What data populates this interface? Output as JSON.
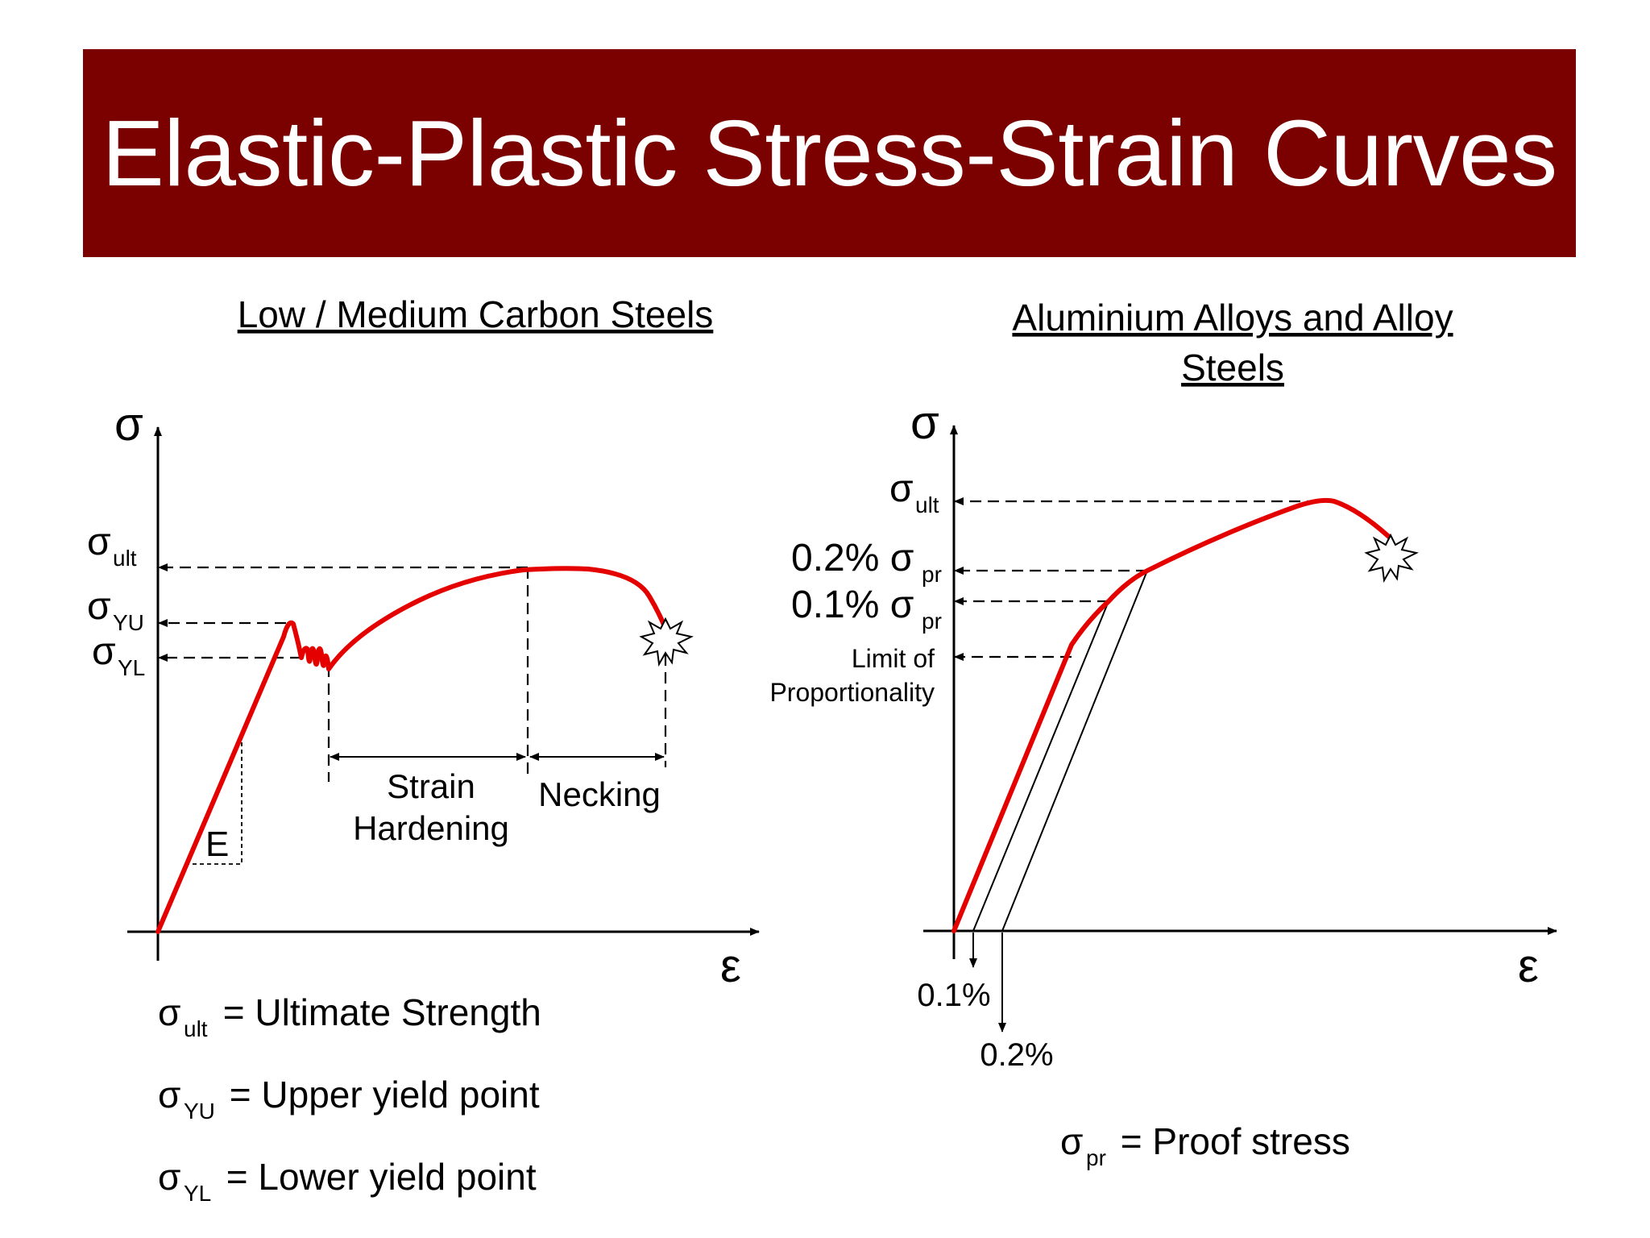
{
  "title": "Elastic-Plastic Stress-Strain Curves",
  "left": {
    "heading": "Low / Medium Carbon Steels",
    "y_axis_symbol": "σ",
    "x_axis_symbol": "ε",
    "labels": {
      "ult_sym": "σ",
      "ult_sub": "ult",
      "yu_sym": "σ",
      "yu_sub": "YU",
      "yl_sym": "σ",
      "yl_sub": "YL",
      "modulus": "E",
      "strain_hardening_line1": "Strain",
      "strain_hardening_line2": "Hardening",
      "necking": "Necking"
    },
    "legend": [
      {
        "sym": "σ",
        "sub": "ult",
        "text": " = Ultimate Strength"
      },
      {
        "sym": "σ",
        "sub": "YU",
        "text": " = Upper yield point"
      },
      {
        "sym": "σ",
        "sub": "YL",
        "text": " = Lower yield point"
      }
    ]
  },
  "right": {
    "heading_line1": "Aluminium Alloys and Alloy",
    "heading_line2": "Steels",
    "y_axis_symbol": "σ",
    "x_axis_symbol": "ε",
    "labels": {
      "ult_sym": "σ",
      "ult_sub": "ult",
      "pr02_prefix": "0.2% σ",
      "pr02_sub": "pr",
      "pr01_prefix": "0.1% σ",
      "pr01_sub": "pr",
      "limit_line1": "Limit of",
      "limit_line2": "Proportionality",
      "offset_01": "0.1%",
      "offset_02": "0.2%"
    },
    "legend": {
      "sym": "σ",
      "sub": "pr",
      "text": " = Proof stress"
    }
  },
  "colors": {
    "banner": "#7b0000",
    "curve": "#e50000",
    "text": "#000000"
  }
}
